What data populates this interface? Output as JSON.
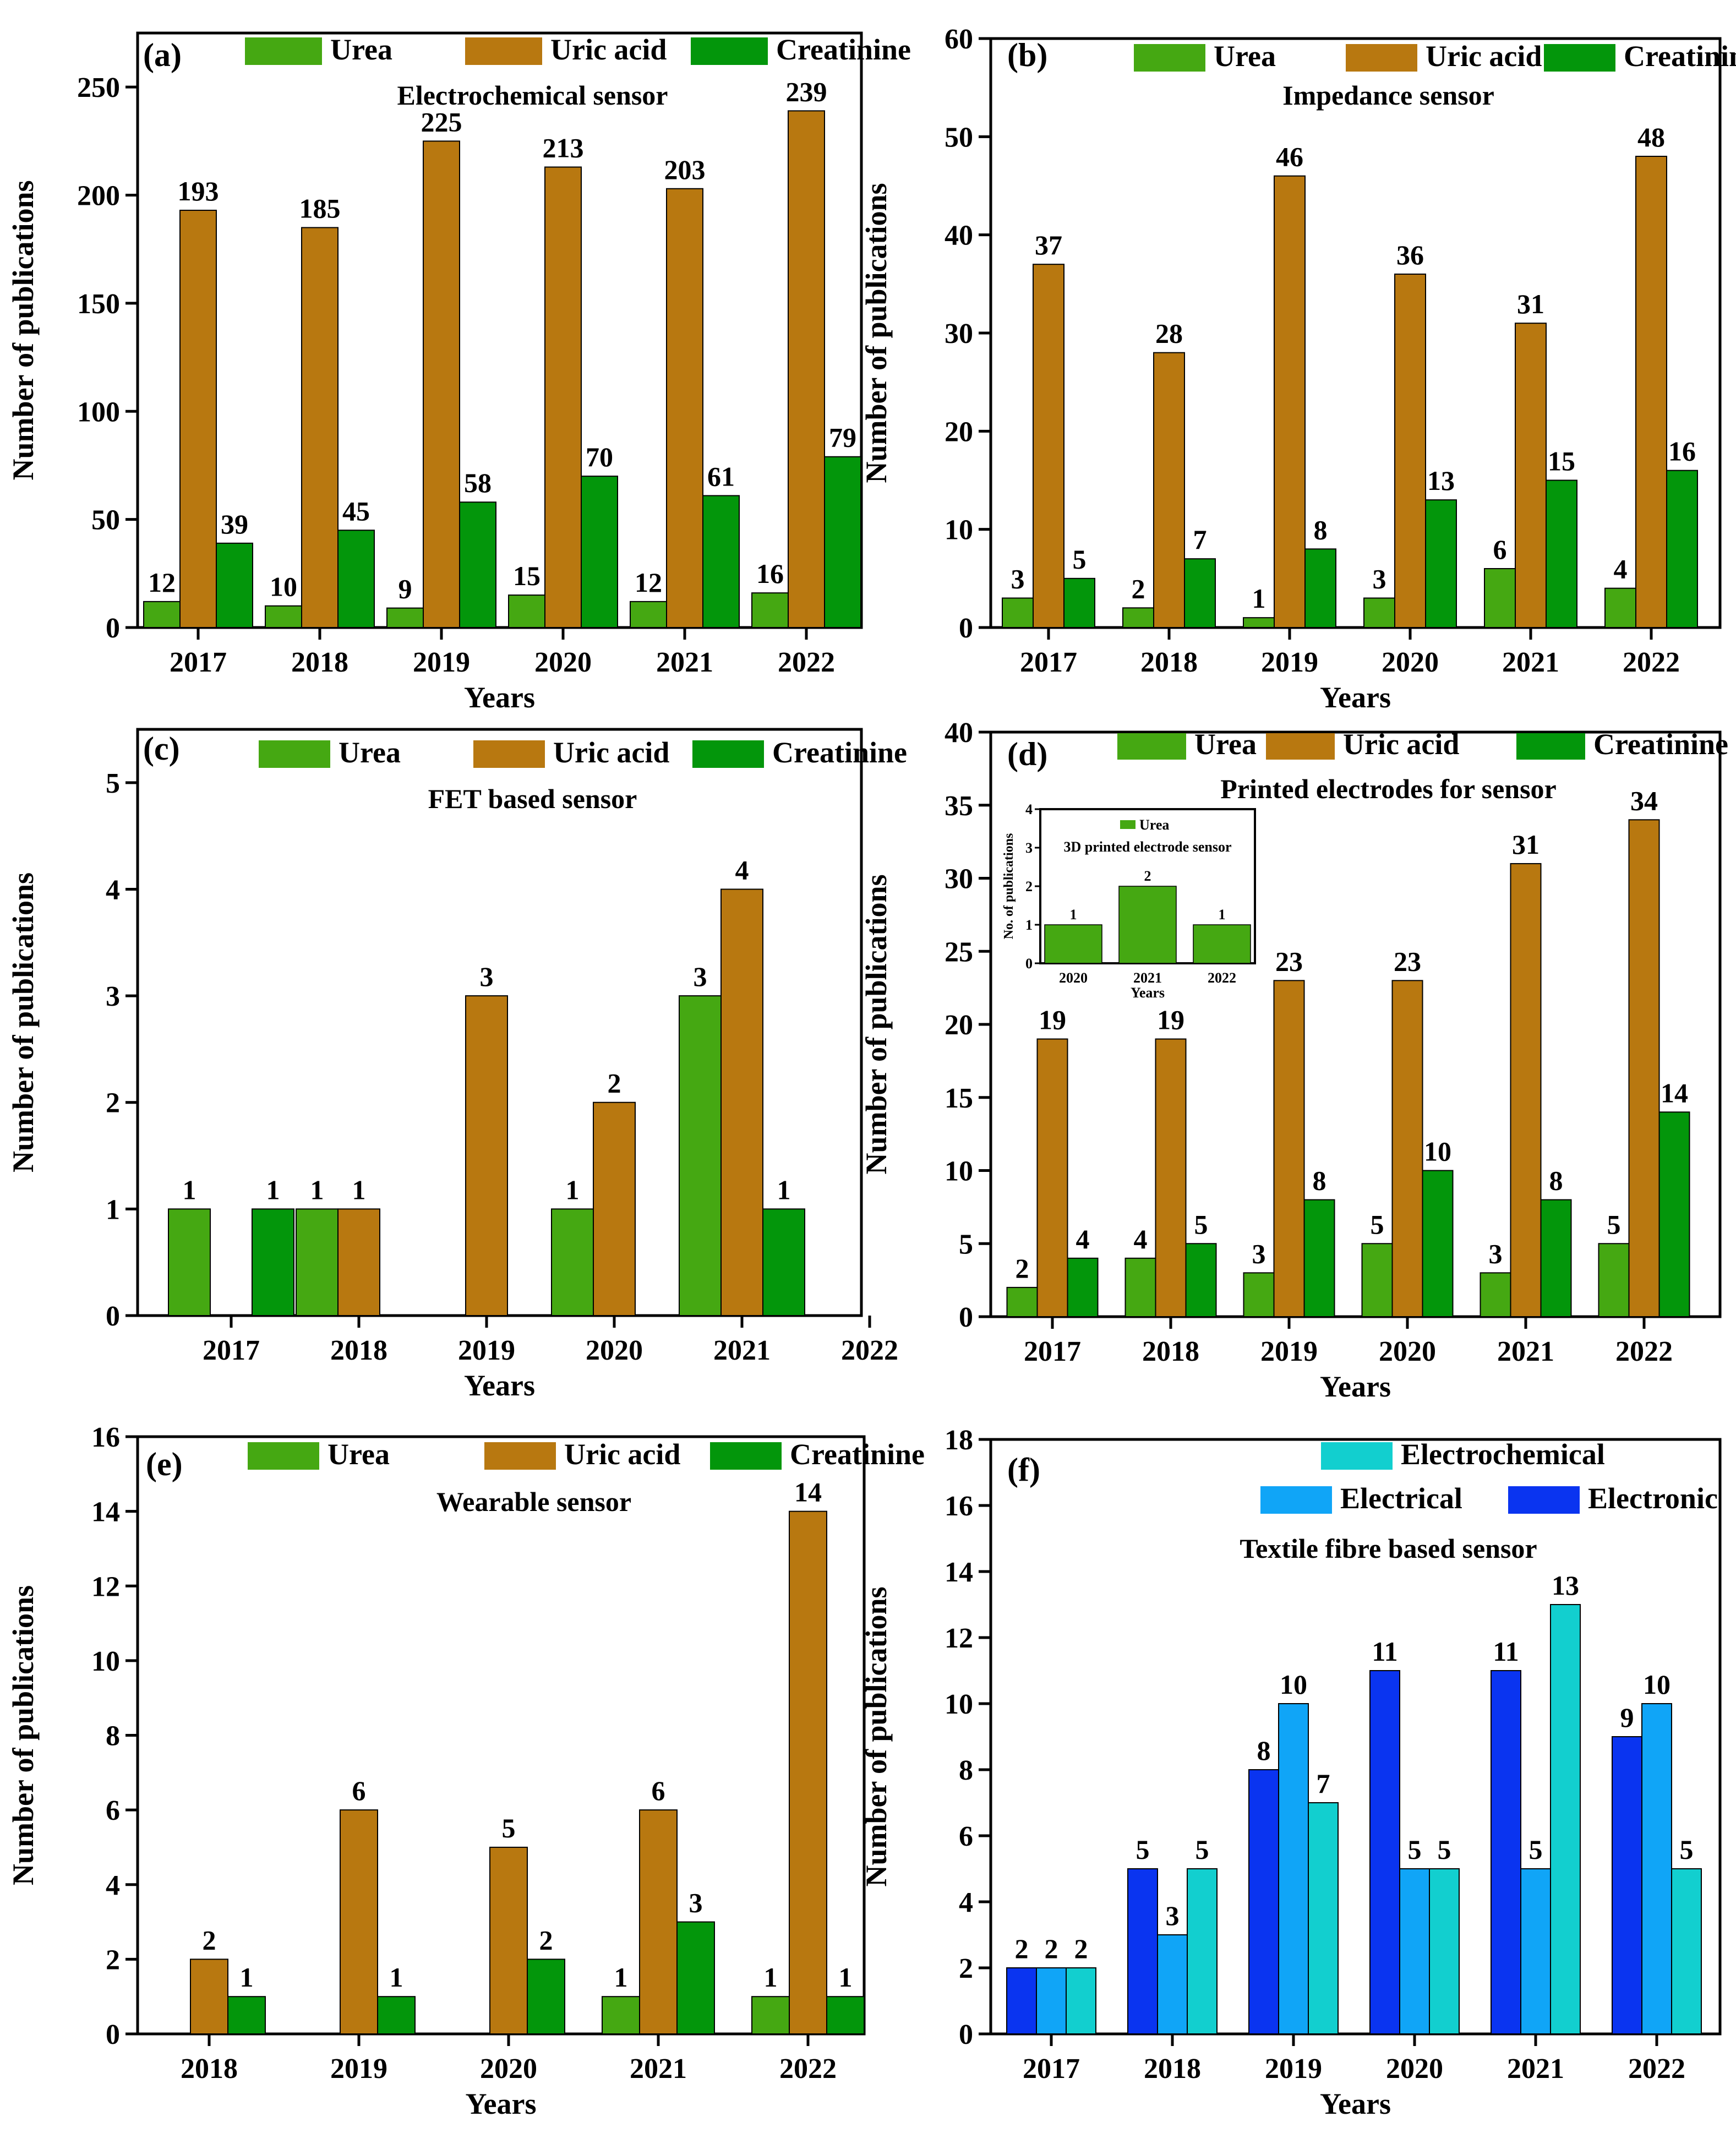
{
  "colors": {
    "urea": "#45a812",
    "uric_acid": "#b87810",
    "creatinine": "#03960b",
    "electrochemical": "#12cfcf",
    "electrical": "#10a5f7",
    "electronic": "#0a34f0",
    "axis": "#000000"
  },
  "chart_data": [
    {
      "id": "a",
      "type": "bar",
      "panel_label": "(a)",
      "title": "Electrochemical sensor",
      "xlabel": "Years",
      "ylabel": "Number of publications",
      "ylim": [
        0,
        275
      ],
      "yticks": [
        0,
        50,
        100,
        150,
        200,
        250
      ],
      "categories": [
        "2017",
        "2018",
        "2019",
        "2020",
        "2021",
        "2022"
      ],
      "legend_rows": [
        [
          "Urea",
          "Uric acid",
          "Creatinine"
        ]
      ],
      "series": [
        {
          "name": "Urea",
          "color_key": "urea",
          "values": [
            12,
            10,
            9,
            15,
            12,
            16
          ]
        },
        {
          "name": "Uric acid",
          "color_key": "uric_acid",
          "values": [
            193,
            185,
            225,
            213,
            203,
            239
          ]
        },
        {
          "name": "Creatinine",
          "color_key": "creatinine",
          "values": [
            39,
            45,
            58,
            70,
            61,
            79
          ]
        }
      ]
    },
    {
      "id": "b",
      "type": "bar",
      "panel_label": "(b)",
      "title": "Impedance sensor",
      "xlabel": "Years",
      "ylabel": "Number of publications",
      "ylim": [
        0,
        60
      ],
      "yticks": [
        0,
        10,
        20,
        30,
        40,
        50,
        60
      ],
      "categories": [
        "2017",
        "2018",
        "2019",
        "2020",
        "2021",
        "2022"
      ],
      "legend_rows": [
        [
          "Urea",
          "Uric acid",
          "Creatinine"
        ]
      ],
      "series": [
        {
          "name": "Urea",
          "color_key": "urea",
          "values": [
            3,
            2,
            1,
            3,
            6,
            4
          ]
        },
        {
          "name": "Uric acid",
          "color_key": "uric_acid",
          "values": [
            37,
            28,
            46,
            36,
            31,
            48
          ]
        },
        {
          "name": "Creatinine",
          "color_key": "creatinine",
          "values": [
            5,
            7,
            8,
            13,
            15,
            16
          ]
        }
      ]
    },
    {
      "id": "c",
      "type": "bar",
      "panel_label": "(c)",
      "title": "FET based sensor",
      "xlabel": "Years",
      "ylabel": "Number of publications",
      "ylim": [
        0,
        5.5
      ],
      "yticks": [
        0,
        1,
        2,
        3,
        4,
        5
      ],
      "categories": [
        "2017",
        "2018",
        "2019",
        "2020",
        "2021",
        "2022"
      ],
      "legend_rows": [
        [
          "Urea",
          "Uric acid",
          "Creatinine"
        ]
      ],
      "series": [
        {
          "name": "Urea",
          "color_key": "urea",
          "values": [
            1,
            1,
            0,
            1,
            3,
            null
          ]
        },
        {
          "name": "Uric acid",
          "color_key": "uric_acid",
          "values": [
            0,
            1,
            3,
            2,
            4,
            null
          ]
        },
        {
          "name": "Creatinine",
          "color_key": "creatinine",
          "values": [
            1,
            0,
            0,
            0,
            1,
            null
          ]
        }
      ]
    },
    {
      "id": "d",
      "type": "bar",
      "panel_label": "(d)",
      "title": "Printed electrodes for sensor",
      "xlabel": "Years",
      "ylabel": "Number of publications",
      "ylim": [
        0,
        40
      ],
      "yticks": [
        0,
        5,
        10,
        15,
        20,
        25,
        30,
        35,
        40
      ],
      "categories": [
        "2017",
        "2018",
        "2019",
        "2020",
        "2021",
        "2022"
      ],
      "legend_rows": [
        [
          "Urea",
          "Uric acid",
          "Creatinine"
        ]
      ],
      "series": [
        {
          "name": "Urea",
          "color_key": "urea",
          "values": [
            2,
            4,
            3,
            5,
            3,
            5
          ]
        },
        {
          "name": "Uric acid",
          "color_key": "uric_acid",
          "values": [
            19,
            19,
            23,
            23,
            31,
            34
          ]
        },
        {
          "name": "Creatinine",
          "color_key": "creatinine",
          "values": [
            4,
            5,
            8,
            10,
            8,
            14
          ]
        }
      ],
      "inset": {
        "type": "bar",
        "title": "3D printed electrode sensor",
        "xlabel": "Years",
        "ylabel": "No. of publications",
        "ylim": [
          0,
          4
        ],
        "yticks": [
          0,
          1,
          2,
          3,
          4
        ],
        "categories": [
          "2020",
          "2021",
          "2022"
        ],
        "legend_rows": [
          [
            "Urea"
          ]
        ],
        "series": [
          {
            "name": "Urea",
            "color_key": "urea",
            "values": [
              1,
              2,
              1
            ]
          }
        ]
      }
    },
    {
      "id": "e",
      "type": "bar",
      "panel_label": "(e)",
      "title": "Wearable sensor",
      "xlabel": "Years",
      "ylabel": "Number of publications",
      "ylim": [
        0,
        16
      ],
      "yticks": [
        0,
        2,
        4,
        6,
        8,
        10,
        12,
        14,
        16
      ],
      "categories": [
        "2018",
        "2019",
        "2020",
        "2021",
        "2022"
      ],
      "legend_rows": [
        [
          "Urea",
          "Uric acid",
          "Creatinine"
        ]
      ],
      "series": [
        {
          "name": "Urea",
          "color_key": "urea",
          "values": [
            null,
            null,
            null,
            1,
            1
          ]
        },
        {
          "name": "Uric acid",
          "color_key": "uric_acid",
          "values": [
            2,
            6,
            5,
            6,
            14
          ]
        },
        {
          "name": "Creatinine",
          "color_key": "creatinine",
          "values": [
            1,
            1,
            2,
            3,
            1
          ]
        }
      ]
    },
    {
      "id": "f",
      "type": "bar",
      "panel_label": "(f)",
      "title": "Textile fibre based sensor",
      "xlabel": "Years",
      "ylabel": "Number of publications",
      "ylim": [
        0,
        18
      ],
      "yticks": [
        0,
        2,
        4,
        6,
        8,
        10,
        12,
        14,
        16,
        18
      ],
      "categories": [
        "2017",
        "2018",
        "2019",
        "2020",
        "2021",
        "2022"
      ],
      "legend_rows": [
        [
          "Electrochemical"
        ],
        [
          "Electrical",
          "Electronic"
        ]
      ],
      "series": [
        {
          "name": "Electronic",
          "color_key": "electronic",
          "values": [
            2,
            5,
            8,
            11,
            11,
            9
          ]
        },
        {
          "name": "Electrical",
          "color_key": "electrical",
          "values": [
            2,
            3,
            10,
            5,
            5,
            10
          ]
        },
        {
          "name": "Electrochemical",
          "color_key": "electrochemical",
          "values": [
            2,
            5,
            7,
            5,
            13,
            5
          ]
        }
      ]
    }
  ]
}
